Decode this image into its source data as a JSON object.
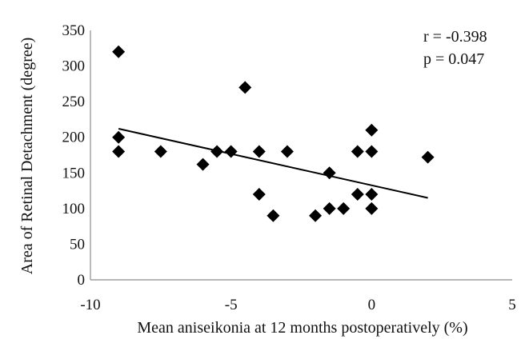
{
  "chart_data": {
    "type": "scatter",
    "xlabel": "Mean aniseikonia at 12 months postoperatively (%)",
    "ylabel": "Area of Retinal Detachment (degree)",
    "xlim": [
      -10,
      5
    ],
    "ylim": [
      0,
      350
    ],
    "x_ticks": [
      -10,
      -5,
      0,
      5
    ],
    "y_ticks": [
      0,
      50,
      100,
      150,
      200,
      250,
      300,
      350
    ],
    "grid": false,
    "legend": "none",
    "marker": "diamond",
    "marker_color": "#000000",
    "points": [
      {
        "x": -9.0,
        "y": 320
      },
      {
        "x": -9.0,
        "y": 200
      },
      {
        "x": -9.0,
        "y": 180
      },
      {
        "x": -7.5,
        "y": 180
      },
      {
        "x": -6.0,
        "y": 162
      },
      {
        "x": -5.5,
        "y": 180
      },
      {
        "x": -5.0,
        "y": 180
      },
      {
        "x": -4.5,
        "y": 270
      },
      {
        "x": -4.0,
        "y": 180
      },
      {
        "x": -4.0,
        "y": 120
      },
      {
        "x": -3.5,
        "y": 90
      },
      {
        "x": -3.0,
        "y": 180
      },
      {
        "x": -2.0,
        "y": 90
      },
      {
        "x": -1.5,
        "y": 150
      },
      {
        "x": -1.5,
        "y": 100
      },
      {
        "x": -1.0,
        "y": 100
      },
      {
        "x": -0.5,
        "y": 180
      },
      {
        "x": -0.5,
        "y": 120
      },
      {
        "x": 0.0,
        "y": 210
      },
      {
        "x": 0.0,
        "y": 180
      },
      {
        "x": 0.0,
        "y": 120
      },
      {
        "x": 0.0,
        "y": 100
      },
      {
        "x": 2.0,
        "y": 172
      }
    ],
    "trendline": {
      "x": [
        -9.0,
        2.0
      ],
      "y": [
        212,
        115
      ]
    },
    "annotations": [
      "r = -0.398",
      "p = 0.047"
    ]
  }
}
